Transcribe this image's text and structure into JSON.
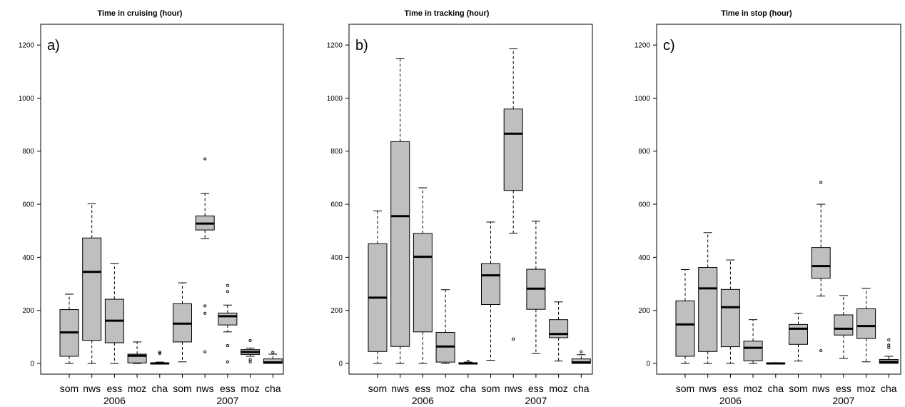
{
  "chart_data": [
    {
      "type": "boxplot",
      "title": "Time in cruising (hour)",
      "panel_label": "a)",
      "ylim": [
        -20,
        1230
      ],
      "yticks": [
        0,
        200,
        400,
        600,
        800,
        1000,
        1200
      ],
      "categories": [
        "som",
        "nws",
        "ess",
        "moz",
        "cha",
        "som",
        "nws",
        "ess",
        "moz",
        "cha"
      ],
      "groups": [
        "2006",
        "2007"
      ],
      "boxes": [
        {
          "category": "som",
          "group": "2006",
          "whisker_low": 0,
          "q1": 27,
          "median": 117,
          "q3": 203,
          "whisker_high": 261,
          "outliers": []
        },
        {
          "category": "nws",
          "group": "2006",
          "whisker_low": 0,
          "q1": 87,
          "median": 345,
          "q3": 473,
          "whisker_high": 602,
          "outliers": []
        },
        {
          "category": "ess",
          "group": "2006",
          "whisker_low": 0,
          "q1": 78,
          "median": 161,
          "q3": 242,
          "whisker_high": 376,
          "outliers": []
        },
        {
          "category": "moz",
          "group": "2006",
          "whisker_low": 0,
          "q1": 2,
          "median": 29,
          "q3": 35,
          "whisker_high": 81,
          "outliers": []
        },
        {
          "category": "cha",
          "group": "2006",
          "whisker_low": 0,
          "q1": 0,
          "median": 0,
          "q3": 2,
          "whisker_high": 5,
          "outliers": [
            38,
            42
          ]
        },
        {
          "category": "som",
          "group": "2007",
          "whisker_low": 6,
          "q1": 81,
          "median": 150,
          "q3": 225,
          "whisker_high": 304,
          "outliers": []
        },
        {
          "category": "nws",
          "group": "2007",
          "whisker_low": 470,
          "q1": 503,
          "median": 527,
          "q3": 556,
          "whisker_high": 641,
          "outliers": [
            771,
            217,
            189,
            44
          ]
        },
        {
          "category": "ess",
          "group": "2007",
          "whisker_low": 119,
          "q1": 145,
          "median": 178,
          "q3": 190,
          "whisker_high": 220,
          "outliers": [
            294,
            271,
            67,
            6
          ]
        },
        {
          "category": "moz",
          "group": "2007",
          "whisker_low": 27,
          "q1": 34,
          "median": 43,
          "q3": 52,
          "whisker_high": 58,
          "outliers": [
            86,
            14,
            6
          ]
        },
        {
          "category": "cha",
          "group": "2007",
          "whisker_low": 0,
          "q1": 0,
          "median": 4,
          "q3": 17,
          "whisker_high": 35,
          "outliers": [
            42
          ]
        }
      ]
    },
    {
      "type": "boxplot",
      "title": "Time in tracking (hour)",
      "panel_label": "b)",
      "ylim": [
        -20,
        1230
      ],
      "yticks": [
        0,
        200,
        400,
        600,
        800,
        1000,
        1200
      ],
      "categories": [
        "som",
        "nws",
        "ess",
        "moz",
        "cha",
        "som",
        "nws",
        "ess",
        "moz",
        "cha"
      ],
      "groups": [
        "2006",
        "2007"
      ],
      "boxes": [
        {
          "category": "som",
          "group": "2006",
          "whisker_low": 0,
          "q1": 45,
          "median": 248,
          "q3": 451,
          "whisker_high": 575,
          "outliers": []
        },
        {
          "category": "nws",
          "group": "2006",
          "whisker_low": 0,
          "q1": 64,
          "median": 555,
          "q3": 836,
          "whisker_high": 1150,
          "outliers": []
        },
        {
          "category": "ess",
          "group": "2006",
          "whisker_low": 0,
          "q1": 119,
          "median": 402,
          "q3": 490,
          "whisker_high": 662,
          "outliers": []
        },
        {
          "category": "moz",
          "group": "2006",
          "whisker_low": 0,
          "q1": 5,
          "median": 64,
          "q3": 117,
          "whisker_high": 278,
          "outliers": []
        },
        {
          "category": "cha",
          "group": "2006",
          "whisker_low": 0,
          "q1": 0,
          "median": 0,
          "q3": 2,
          "whisker_high": 5,
          "outliers": [
            8
          ]
        },
        {
          "category": "som",
          "group": "2007",
          "whisker_low": 12,
          "q1": 222,
          "median": 332,
          "q3": 376,
          "whisker_high": 533,
          "outliers": []
        },
        {
          "category": "nws",
          "group": "2007",
          "whisker_low": 491,
          "q1": 652,
          "median": 866,
          "q3": 959,
          "whisker_high": 1187,
          "outliers": [
            92
          ]
        },
        {
          "category": "ess",
          "group": "2007",
          "whisker_low": 37,
          "q1": 204,
          "median": 282,
          "q3": 355,
          "whisker_high": 536,
          "outliers": []
        },
        {
          "category": "moz",
          "group": "2007",
          "whisker_low": 9,
          "q1": 97,
          "median": 111,
          "q3": 165,
          "whisker_high": 232,
          "outliers": []
        },
        {
          "category": "cha",
          "group": "2007",
          "whisker_low": 0,
          "q1": 0,
          "median": 4,
          "q3": 17,
          "whisker_high": 33,
          "outliers": [
            44
          ]
        }
      ]
    },
    {
      "type": "boxplot",
      "title": "Time in stop (hour)",
      "panel_label": "c)",
      "ylim": [
        -20,
        1230
      ],
      "yticks": [
        0,
        200,
        400,
        600,
        800,
        1000,
        1200
      ],
      "categories": [
        "som",
        "nws",
        "ess",
        "moz",
        "cha",
        "som",
        "nws",
        "ess",
        "moz",
        "cha"
      ],
      "groups": [
        "2006",
        "2007"
      ],
      "boxes": [
        {
          "category": "som",
          "group": "2006",
          "whisker_low": 0,
          "q1": 27,
          "median": 147,
          "q3": 236,
          "whisker_high": 354,
          "outliers": []
        },
        {
          "category": "nws",
          "group": "2006",
          "whisker_low": 0,
          "q1": 45,
          "median": 283,
          "q3": 362,
          "whisker_high": 493,
          "outliers": []
        },
        {
          "category": "ess",
          "group": "2006",
          "whisker_low": 0,
          "q1": 63,
          "median": 212,
          "q3": 279,
          "whisker_high": 390,
          "outliers": []
        },
        {
          "category": "moz",
          "group": "2006",
          "whisker_low": 0,
          "q1": 10,
          "median": 59,
          "q3": 84,
          "whisker_high": 165,
          "outliers": []
        },
        {
          "category": "cha",
          "group": "2006",
          "whisker_low": 0,
          "q1": 0,
          "median": 0,
          "q3": 2,
          "whisker_high": 3,
          "outliers": []
        },
        {
          "category": "som",
          "group": "2007",
          "whisker_low": 9,
          "q1": 72,
          "median": 131,
          "q3": 147,
          "whisker_high": 189,
          "outliers": []
        },
        {
          "category": "nws",
          "group": "2007",
          "whisker_low": 254,
          "q1": 321,
          "median": 367,
          "q3": 437,
          "whisker_high": 600,
          "outliers": [
            682,
            48
          ]
        },
        {
          "category": "ess",
          "group": "2007",
          "whisker_low": 19,
          "q1": 107,
          "median": 131,
          "q3": 183,
          "whisker_high": 256,
          "outliers": []
        },
        {
          "category": "moz",
          "group": "2007",
          "whisker_low": 6,
          "q1": 94,
          "median": 141,
          "q3": 206,
          "whisker_high": 283,
          "outliers": []
        },
        {
          "category": "cha",
          "group": "2007",
          "whisker_low": 0,
          "q1": 0,
          "median": 6,
          "q3": 15,
          "whisker_high": 27,
          "outliers": [
            89,
            69,
            60
          ]
        }
      ]
    }
  ],
  "colors": {
    "box_fill": "#bfbfbf",
    "stroke": "#000000"
  }
}
